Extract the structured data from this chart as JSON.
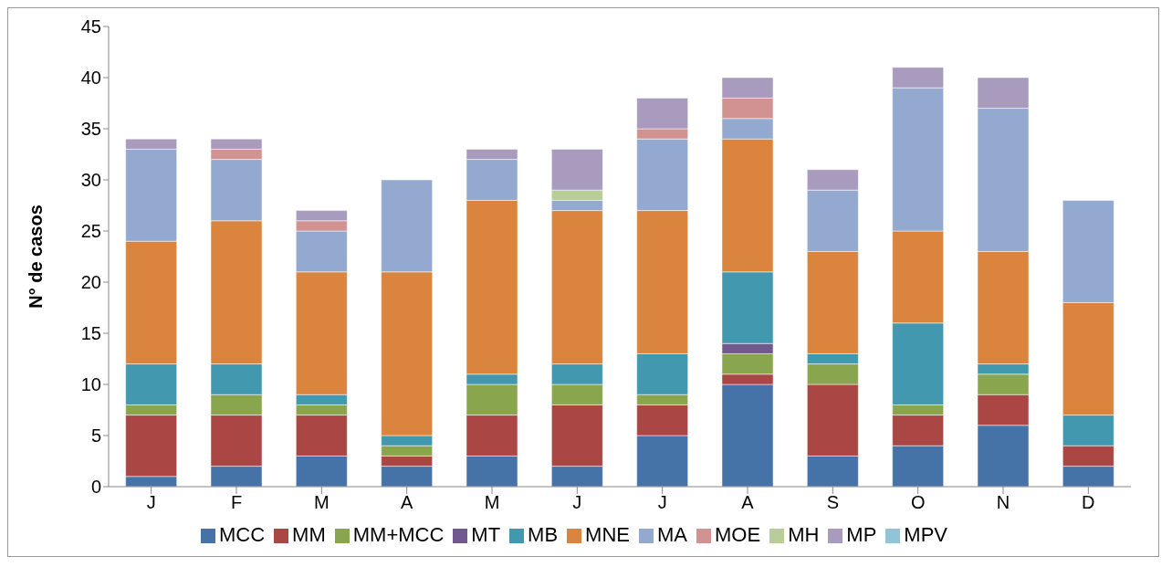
{
  "chart_data": {
    "type": "bar",
    "stacked": true,
    "ylabel": "N° de casos",
    "categories": [
      "J",
      "F",
      "M",
      "A",
      "M",
      "J",
      "J",
      "A",
      "S",
      "O",
      "N",
      "D"
    ],
    "ylim": [
      0,
      45
    ],
    "yticks": [
      0,
      5,
      10,
      15,
      20,
      25,
      30,
      35,
      40,
      45
    ],
    "grid": false,
    "legend": "bottom",
    "series": [
      {
        "name": "MCC",
        "color": "#4572a7",
        "values": [
          1,
          2,
          3,
          2,
          3,
          2,
          5,
          10,
          3,
          4,
          6,
          2
        ]
      },
      {
        "name": "MM",
        "color": "#aa4643",
        "values": [
          6,
          5,
          4,
          1,
          4,
          6,
          3,
          1,
          7,
          3,
          3,
          2
        ]
      },
      {
        "name": "MM+MCC",
        "color": "#89a54e",
        "values": [
          1,
          2,
          1,
          1,
          3,
          2,
          1,
          2,
          2,
          1,
          2,
          0
        ]
      },
      {
        "name": "MT",
        "color": "#71588f",
        "values": [
          0,
          0,
          0,
          0,
          0,
          0,
          0,
          1,
          0,
          0,
          0,
          0
        ]
      },
      {
        "name": "MB",
        "color": "#4198af",
        "values": [
          4,
          3,
          1,
          1,
          1,
          2,
          4,
          7,
          1,
          8,
          1,
          3
        ]
      },
      {
        "name": "MNE",
        "color": "#db843d",
        "values": [
          12,
          14,
          12,
          16,
          17,
          15,
          14,
          13,
          10,
          9,
          11,
          11
        ]
      },
      {
        "name": "MA",
        "color": "#93a9cf",
        "values": [
          9,
          6,
          4,
          9,
          4,
          1,
          7,
          2,
          6,
          14,
          14,
          10
        ]
      },
      {
        "name": "MOE",
        "color": "#d19392",
        "values": [
          0,
          1,
          1,
          0,
          0,
          0,
          1,
          2,
          0,
          0,
          0,
          0
        ]
      },
      {
        "name": "MH",
        "color": "#b9cd96",
        "values": [
          0,
          0,
          0,
          0,
          0,
          1,
          0,
          0,
          0,
          0,
          0,
          0
        ]
      },
      {
        "name": "MP",
        "color": "#a99bbd",
        "values": [
          1,
          1,
          1,
          0,
          1,
          4,
          3,
          2,
          2,
          2,
          3,
          0
        ]
      },
      {
        "name": "MPV",
        "color": "#92c4d9",
        "values": [
          0,
          0,
          0,
          0,
          0,
          0,
          0,
          0,
          0,
          0,
          0,
          0
        ]
      }
    ]
  }
}
